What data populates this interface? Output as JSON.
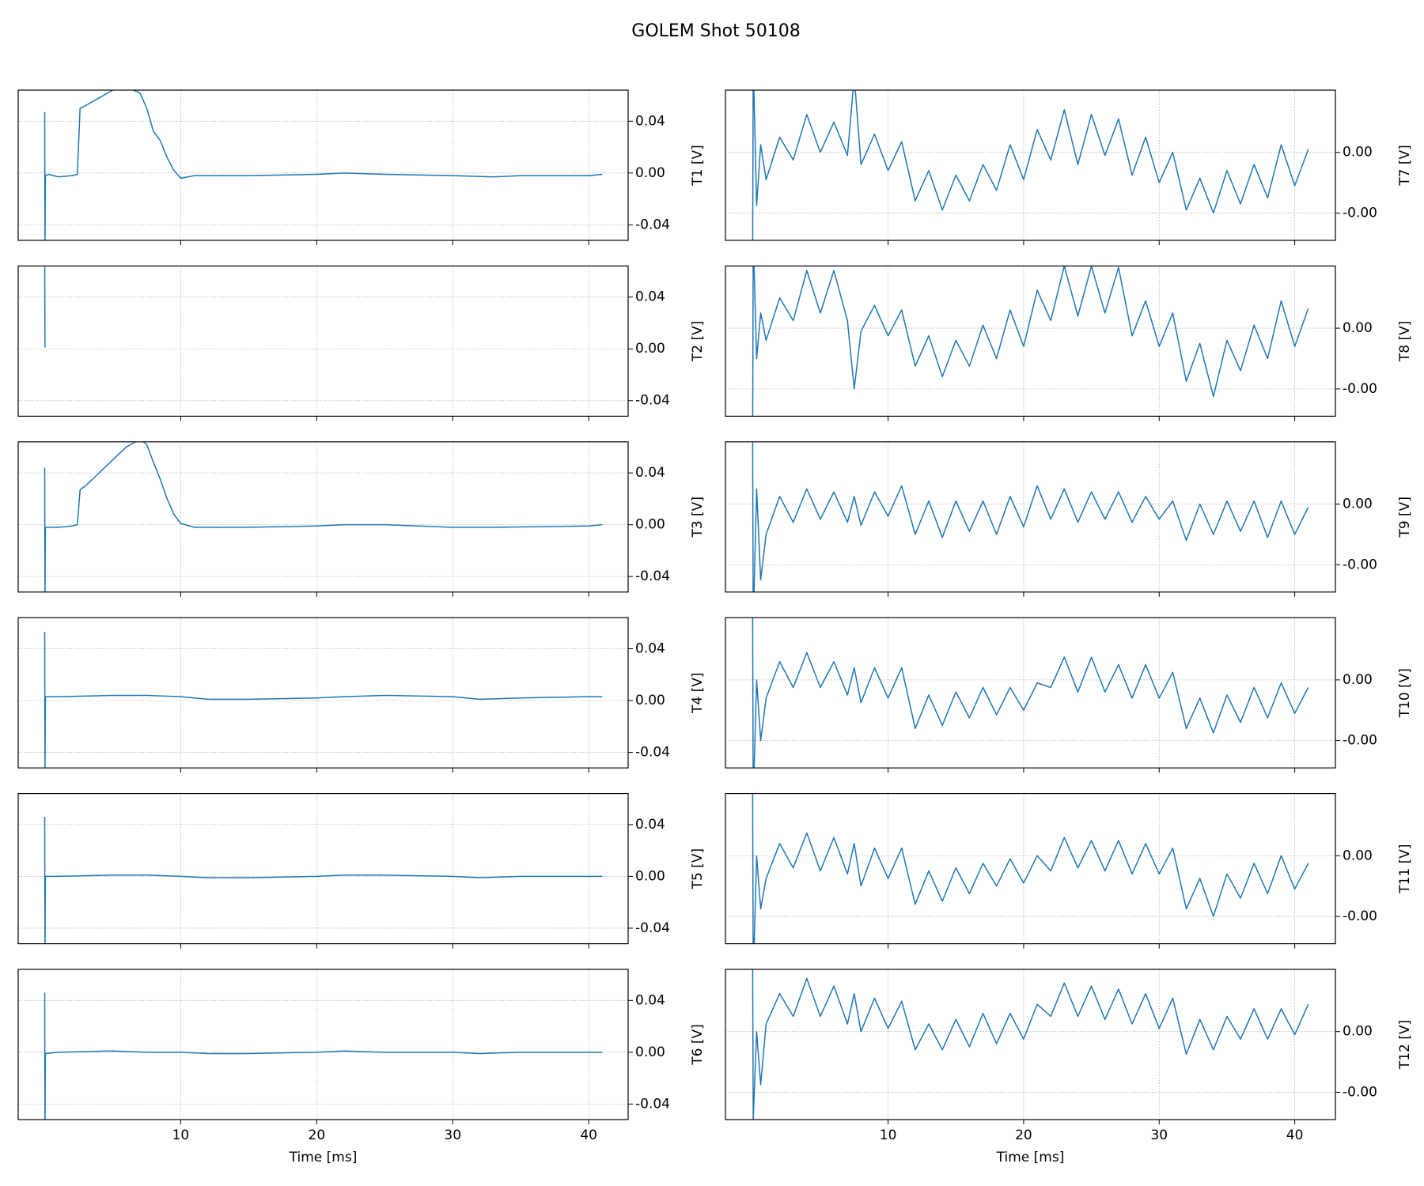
{
  "title": "GOLEM Shot 50108",
  "chart_data": [
    {
      "type": "line",
      "ylabel": "T1 [V]",
      "color": "#1f77b4",
      "grid": true,
      "xlim": [
        -1.95,
        42.9
      ],
      "ylim": [
        -0.052,
        0.064
      ],
      "xticks": [
        10,
        20,
        30,
        40
      ],
      "yticks": [
        -0.04,
        {
          "value": 0,
          "label": "0.00"
        },
        0.04
      ],
      "x": [
        0,
        0.02,
        0.05,
        0.3,
        1,
        2,
        2.4,
        2.6,
        3,
        4,
        5,
        6,
        7,
        7.5,
        8,
        8.5,
        9,
        9.5,
        10,
        11,
        12,
        15,
        20,
        22,
        25,
        30,
        33,
        35,
        40,
        41
      ],
      "values": [
        0.047,
        -0.06,
        -0.002,
        -0.001,
        -0.003,
        -0.002,
        -0.001,
        0.05,
        0.052,
        0.058,
        0.064,
        0.066,
        0.062,
        0.05,
        0.032,
        0.025,
        0.012,
        0.002,
        -0.004,
        -0.002,
        -0.002,
        -0.002,
        -0.001,
        0.0,
        -0.001,
        -0.002,
        -0.003,
        -0.002,
        -0.002,
        -0.001
      ]
    },
    {
      "type": "line",
      "ylabel": "T2 [V]",
      "color": "#1f77b4",
      "grid": true,
      "xlim": [
        -1.95,
        42.9
      ],
      "ylim": [
        -0.052,
        0.064
      ],
      "xticks": [
        10,
        20,
        30,
        40
      ],
      "yticks": [
        -0.04,
        {
          "value": 0,
          "label": "0.00"
        },
        0.04
      ],
      "x": [
        0,
        0.02
      ],
      "values": [
        0.07,
        0.001
      ]
    },
    {
      "type": "line",
      "ylabel": "T3 [V]",
      "color": "#1f77b4",
      "grid": true,
      "xlim": [
        -1.95,
        42.9
      ],
      "ylim": [
        -0.052,
        0.064
      ],
      "xticks": [
        10,
        20,
        30,
        40
      ],
      "yticks": [
        -0.04,
        {
          "value": 0,
          "label": "0.00"
        },
        0.04
      ],
      "x": [
        0,
        0.02,
        0.05,
        1,
        2,
        2.4,
        2.6,
        3,
        4,
        5,
        6,
        7,
        7.5,
        8,
        8.5,
        9,
        9.5,
        10,
        11,
        15,
        20,
        22,
        25,
        30,
        33,
        40,
        41
      ],
      "values": [
        0.044,
        -0.06,
        -0.002,
        -0.002,
        -0.001,
        0.0,
        0.027,
        0.03,
        0.04,
        0.05,
        0.06,
        0.066,
        0.062,
        0.048,
        0.035,
        0.02,
        0.008,
        0.001,
        -0.002,
        -0.002,
        -0.001,
        0.0,
        0.0,
        -0.002,
        -0.002,
        -0.001,
        0.0
      ]
    },
    {
      "type": "line",
      "ylabel": "T4 [V]",
      "color": "#1f77b4",
      "grid": true,
      "xlim": [
        -1.95,
        42.9
      ],
      "ylim": [
        -0.052,
        0.064
      ],
      "xticks": [
        10,
        20,
        30,
        40
      ],
      "yticks": [
        -0.04,
        {
          "value": 0,
          "label": "0.00"
        },
        0.04
      ],
      "x": [
        0,
        0.02,
        0.05,
        1,
        5,
        7.5,
        10,
        12,
        15,
        20,
        22,
        25,
        30,
        32,
        35,
        40,
        41
      ],
      "values": [
        0.053,
        -0.06,
        0.003,
        0.003,
        0.004,
        0.004,
        0.003,
        0.001,
        0.001,
        0.002,
        0.003,
        0.004,
        0.003,
        0.001,
        0.002,
        0.003,
        0.003
      ]
    },
    {
      "type": "line",
      "ylabel": "T5 [V]",
      "color": "#1f77b4",
      "grid": true,
      "xlim": [
        -1.95,
        42.9
      ],
      "ylim": [
        -0.052,
        0.064
      ],
      "xticks": [
        10,
        20,
        30,
        40
      ],
      "yticks": [
        -0.04,
        {
          "value": 0,
          "label": "0.00"
        },
        0.04
      ],
      "x": [
        0,
        0.02,
        0.05,
        1,
        5,
        7.5,
        10,
        12,
        15,
        20,
        22,
        25,
        30,
        32,
        35,
        40,
        41
      ],
      "values": [
        0.046,
        -0.06,
        0.0,
        0.0,
        0.001,
        0.001,
        0.0,
        -0.001,
        -0.001,
        0.0,
        0.001,
        0.001,
        0.0,
        -0.001,
        0.0,
        0.0,
        0.0
      ]
    },
    {
      "type": "line",
      "ylabel": "T6 [V]",
      "xlabel": "Time [ms]",
      "color": "#1f77b4",
      "grid": true,
      "xlim": [
        -1.95,
        42.9
      ],
      "ylim": [
        -0.052,
        0.064
      ],
      "xticks": [
        10,
        20,
        30,
        40
      ],
      "yticks": [
        -0.04,
        {
          "value": 0,
          "label": "0.00"
        },
        0.04
      ],
      "x": [
        0,
        0.02,
        0.05,
        1,
        5,
        7.5,
        10,
        12,
        15,
        20,
        22,
        25,
        30,
        32,
        35,
        40,
        41
      ],
      "values": [
        0.046,
        -0.06,
        -0.001,
        0.0,
        0.001,
        0.0,
        0.0,
        -0.001,
        -0.001,
        0.0,
        0.001,
        0.0,
        0.0,
        -0.001,
        0.0,
        0.0,
        0.0
      ]
    },
    {
      "type": "line",
      "ylabel": "T7 [V]",
      "color": "#1f77b4",
      "grid": true,
      "xlim": [
        -2.0,
        43.0
      ],
      "ylim": [
        -0.0038,
        0.0061
      ],
      "xticks": [
        10,
        20,
        30,
        40
      ],
      "yticks": [
        {
          "value": -0.002,
          "label": "-0.00"
        },
        {
          "value": 0.002,
          "label": "0.00"
        }
      ],
      "x": [
        0,
        0.05,
        0.3,
        0.6,
        1,
        2,
        3,
        4,
        5,
        6,
        7,
        7.5,
        8,
        9,
        10,
        11,
        12,
        13,
        14,
        15,
        16,
        17,
        18,
        19,
        20,
        21,
        22,
        23,
        24,
        25,
        26,
        27,
        28,
        29,
        30,
        31,
        32,
        33,
        34,
        35,
        36,
        37,
        38,
        39,
        40,
        41
      ],
      "values": [
        -0.007,
        0.008,
        -0.0015,
        0.0025,
        0.0002,
        0.003,
        0.0015,
        0.0045,
        0.002,
        0.004,
        0.0018,
        0.007,
        0.0012,
        0.0032,
        0.0008,
        0.0027,
        -0.0012,
        0.0008,
        -0.0018,
        0.0005,
        -0.0012,
        0.0012,
        -0.0005,
        0.0025,
        0.0002,
        0.0035,
        0.0015,
        0.0048,
        0.0012,
        0.0045,
        0.0018,
        0.0042,
        0.0005,
        0.003,
        0.0,
        0.002,
        -0.0018,
        0.0003,
        -0.002,
        0.0008,
        -0.0014,
        0.0012,
        -0.001,
        0.0025,
        -0.0002,
        0.0022
      ]
    },
    {
      "type": "line",
      "ylabel": "T8 [V]",
      "color": "#1f77b4",
      "grid": true,
      "xlim": [
        -2.0,
        43.0
      ],
      "ylim": [
        -0.0038,
        0.0061
      ],
      "xticks": [
        10,
        20,
        30,
        40
      ],
      "yticks": [
        {
          "value": -0.002,
          "label": "-0.00"
        },
        {
          "value": 0.002,
          "label": "0.00"
        }
      ],
      "x": [
        0,
        0.05,
        0.3,
        0.6,
        1,
        2,
        3,
        4,
        5,
        6,
        7,
        7.5,
        8,
        9,
        10,
        11,
        12,
        13,
        14,
        15,
        16,
        17,
        18,
        19,
        20,
        21,
        22,
        23,
        24,
        25,
        26,
        27,
        28,
        29,
        30,
        31,
        32,
        33,
        34,
        35,
        36,
        37,
        38,
        39,
        40,
        41
      ],
      "values": [
        -0.008,
        0.008,
        0.0,
        0.003,
        0.0012,
        0.004,
        0.0025,
        0.0058,
        0.003,
        0.0058,
        0.0025,
        -0.002,
        0.0018,
        0.0035,
        0.0015,
        0.0032,
        -0.0005,
        0.0015,
        -0.0012,
        0.0012,
        -0.0005,
        0.0022,
        0.0,
        0.0032,
        0.0008,
        0.0045,
        0.0025,
        0.0061,
        0.0028,
        0.0061,
        0.003,
        0.006,
        0.0015,
        0.0038,
        0.0008,
        0.003,
        -0.0015,
        0.001,
        -0.0025,
        0.0012,
        -0.0008,
        0.0022,
        0.0,
        0.0038,
        0.0008,
        0.0033
      ]
    },
    {
      "type": "line",
      "ylabel": "T9 [V]",
      "color": "#1f77b4",
      "grid": true,
      "xlim": [
        -2.0,
        43.0
      ],
      "ylim": [
        -0.0038,
        0.0061
      ],
      "xticks": [
        10,
        20,
        30,
        40
      ],
      "yticks": [
        {
          "value": -0.002,
          "label": "-0.00"
        },
        {
          "value": 0.002,
          "label": "0.00"
        }
      ],
      "x": [
        0,
        0.05,
        0.3,
        0.6,
        1,
        2,
        3,
        4,
        5,
        6,
        7,
        7.5,
        8,
        9,
        10,
        11,
        12,
        13,
        14,
        15,
        16,
        17,
        18,
        19,
        20,
        21,
        22,
        23,
        24,
        25,
        26,
        27,
        28,
        29,
        30,
        31,
        32,
        33,
        34,
        35,
        36,
        37,
        38,
        39,
        40,
        41
      ],
      "values": [
        0.008,
        -0.006,
        0.003,
        -0.003,
        0.0,
        0.0025,
        0.0008,
        0.003,
        0.001,
        0.0028,
        0.0008,
        0.0025,
        0.0006,
        0.0028,
        0.0012,
        0.0032,
        0.0,
        0.0022,
        -0.0002,
        0.0022,
        0.0002,
        0.0022,
        0.0,
        0.0025,
        0.0005,
        0.0032,
        0.001,
        0.003,
        0.0008,
        0.0028,
        0.001,
        0.0028,
        0.0008,
        0.0025,
        0.001,
        0.0022,
        -0.0004,
        0.002,
        0.0,
        0.0022,
        0.0002,
        0.0022,
        -0.0002,
        0.0022,
        0.0,
        0.0018
      ]
    },
    {
      "type": "line",
      "ylabel": "T10 [V]",
      "color": "#1f77b4",
      "grid": true,
      "xlim": [
        -2.0,
        43.0
      ],
      "ylim": [
        -0.0038,
        0.0061
      ],
      "xticks": [
        10,
        20,
        30,
        40
      ],
      "yticks": [
        {
          "value": -0.002,
          "label": "-0.00"
        },
        {
          "value": 0.002,
          "label": "0.00"
        }
      ],
      "x": [
        0,
        0.05,
        0.3,
        0.6,
        1,
        2,
        3,
        4,
        5,
        6,
        7,
        7.5,
        8,
        9,
        10,
        11,
        12,
        13,
        14,
        15,
        16,
        17,
        18,
        19,
        20,
        21,
        22,
        23,
        24,
        25,
        26,
        27,
        28,
        29,
        30,
        31,
        32,
        33,
        34,
        35,
        36,
        37,
        38,
        39,
        40,
        41
      ],
      "values": [
        0.008,
        -0.006,
        0.002,
        -0.002,
        0.0008,
        0.0032,
        0.0015,
        0.0038,
        0.0015,
        0.0032,
        0.001,
        0.0028,
        0.0005,
        0.0028,
        0.0008,
        0.0028,
        -0.0012,
        0.001,
        -0.001,
        0.0012,
        -0.0005,
        0.0015,
        -0.0003,
        0.0015,
        0.0,
        0.0018,
        0.0015,
        0.0035,
        0.0012,
        0.0035,
        0.0012,
        0.003,
        0.0008,
        0.003,
        0.0008,
        0.0025,
        -0.0012,
        0.0008,
        -0.0015,
        0.001,
        -0.0008,
        0.0015,
        -0.0005,
        0.0018,
        -0.0002,
        0.0015
      ]
    },
    {
      "type": "line",
      "ylabel": "T11 [V]",
      "color": "#1f77b4",
      "grid": true,
      "xlim": [
        -2.0,
        43.0
      ],
      "ylim": [
        -0.0038,
        0.0061
      ],
      "xticks": [
        10,
        20,
        30,
        40
      ],
      "yticks": [
        {
          "value": -0.002,
          "label": "-0.00"
        },
        {
          "value": 0.002,
          "label": "0.00"
        }
      ],
      "x": [
        0,
        0.05,
        0.3,
        0.6,
        1,
        2,
        3,
        4,
        5,
        6,
        7,
        7.5,
        8,
        9,
        10,
        11,
        12,
        13,
        14,
        15,
        16,
        17,
        18,
        19,
        20,
        21,
        22,
        23,
        24,
        25,
        26,
        27,
        28,
        29,
        30,
        31,
        32,
        33,
        34,
        35,
        36,
        37,
        38,
        39,
        40,
        41
      ],
      "values": [
        0.008,
        -0.006,
        0.002,
        -0.0015,
        0.0005,
        0.0028,
        0.0012,
        0.0035,
        0.001,
        0.0032,
        0.0008,
        0.0028,
        0.0,
        0.0025,
        0.0005,
        0.0025,
        -0.0012,
        0.001,
        -0.001,
        0.0012,
        -0.0005,
        0.0015,
        0.0,
        0.0018,
        0.0002,
        0.002,
        0.001,
        0.0032,
        0.0012,
        0.003,
        0.001,
        0.003,
        0.0008,
        0.0028,
        0.0008,
        0.0025,
        -0.0015,
        0.0005,
        -0.002,
        0.0008,
        -0.0008,
        0.0015,
        -0.0005,
        0.002,
        -0.0002,
        0.0015
      ]
    },
    {
      "type": "line",
      "ylabel": "T12 [V]",
      "xlabel": "Time [ms]",
      "color": "#1f77b4",
      "grid": true,
      "xlim": [
        -2.0,
        43.0
      ],
      "ylim": [
        -0.0038,
        0.0061
      ],
      "xticks": [
        10,
        20,
        30,
        40
      ],
      "yticks": [
        {
          "value": -0.002,
          "label": "-0.00"
        },
        {
          "value": 0.002,
          "label": "0.00"
        }
      ],
      "x": [
        0,
        0.05,
        0.3,
        0.6,
        1,
        2,
        3,
        4,
        5,
        6,
        7,
        7.5,
        8,
        9,
        10,
        11,
        12,
        13,
        14,
        15,
        16,
        17,
        18,
        19,
        20,
        21,
        22,
        23,
        24,
        25,
        26,
        27,
        28,
        29,
        30,
        31,
        32,
        33,
        34,
        35,
        36,
        37,
        38,
        39,
        40,
        41
      ],
      "values": [
        0.008,
        -0.0038,
        0.002,
        -0.0015,
        0.0025,
        0.0045,
        0.003,
        0.0055,
        0.003,
        0.005,
        0.0025,
        0.0045,
        0.002,
        0.0042,
        0.0022,
        0.004,
        0.0008,
        0.0025,
        0.0008,
        0.0028,
        0.001,
        0.0032,
        0.0012,
        0.0032,
        0.0015,
        0.0038,
        0.003,
        0.0052,
        0.003,
        0.005,
        0.0028,
        0.0048,
        0.0025,
        0.0045,
        0.0022,
        0.0042,
        0.0005,
        0.0028,
        0.0008,
        0.003,
        0.0015,
        0.0035,
        0.0015,
        0.0035,
        0.0018,
        0.0038
      ]
    }
  ]
}
